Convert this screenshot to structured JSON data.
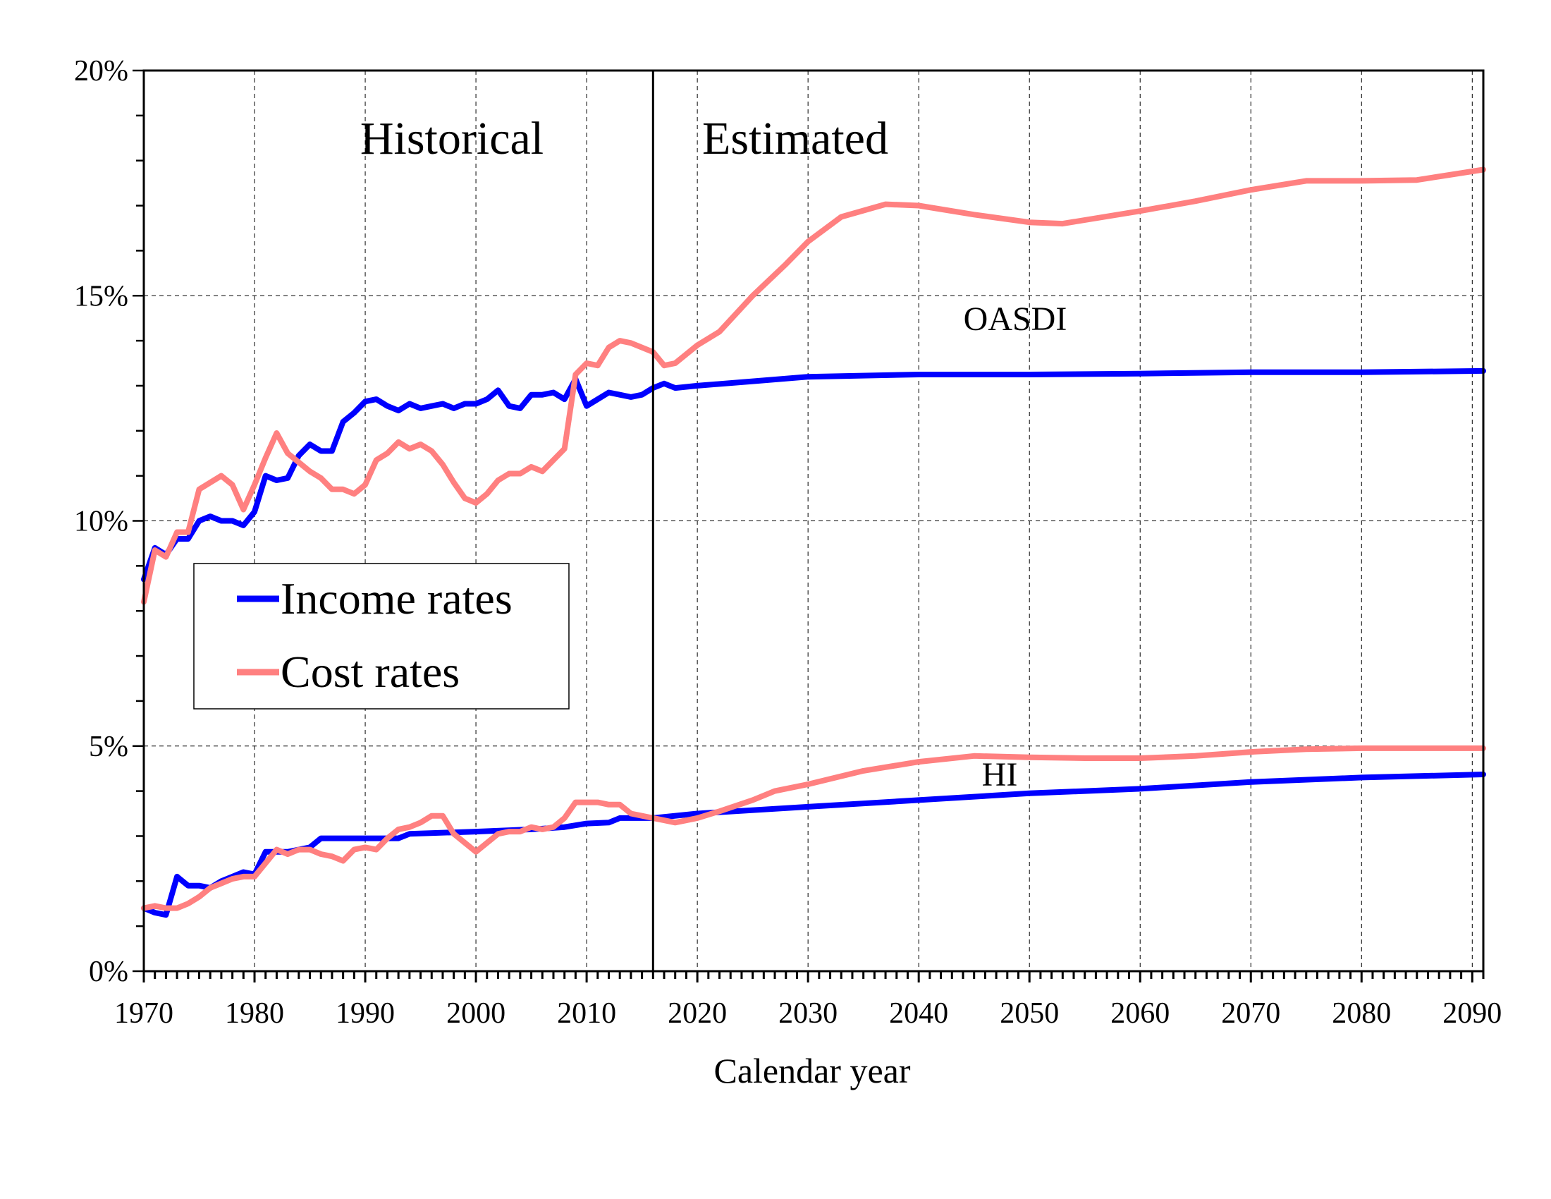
{
  "chart_data": {
    "type": "line",
    "title": "",
    "xlabel": "Calendar year",
    "ylabel": "",
    "xlim": [
      1970,
      2091
    ],
    "ylim": [
      0,
      20
    ],
    "x_ticks": [
      1970,
      1980,
      1990,
      2000,
      2010,
      2020,
      2030,
      2040,
      2050,
      2060,
      2070,
      2080,
      2090
    ],
    "x_tick_labels": [
      "1970",
      "1980",
      "1990",
      "2000",
      "2010",
      "2020",
      "2030",
      "2040",
      "2050",
      "2060",
      "2070",
      "2080",
      "2090"
    ],
    "y_ticks": [
      0,
      5,
      10,
      15,
      20
    ],
    "y_tick_labels": [
      "0%",
      "5%",
      "10%",
      "15%",
      "20%"
    ],
    "grid": true,
    "divider_year": 2016,
    "annotations": {
      "historical": "Historical",
      "estimated": "Estimated",
      "oasdi": "OASDI",
      "hi": "HI"
    },
    "legend": {
      "placement": "middle-left",
      "entries": [
        {
          "label": "Income rates",
          "color": "#0000FF"
        },
        {
          "label": "Cost rates",
          "color": "#FF8080"
        }
      ]
    },
    "series": [
      {
        "group": "OASDI",
        "kind": "Income rates",
        "color": "#0000FF",
        "x": [
          1970,
          1971,
          1972,
          1973,
          1974,
          1975,
          1976,
          1977,
          1978,
          1979,
          1980,
          1981,
          1982,
          1983,
          1984,
          1985,
          1986,
          1987,
          1988,
          1989,
          1990,
          1991,
          1992,
          1993,
          1994,
          1995,
          1996,
          1997,
          1998,
          1999,
          2000,
          2001,
          2002,
          2003,
          2004,
          2005,
          2006,
          2007,
          2008,
          2009,
          2010,
          2011,
          2012,
          2013,
          2014,
          2015,
          2016,
          2017,
          2018,
          2020,
          2025,
          2030,
          2040,
          2050,
          2060,
          2070,
          2080,
          2091
        ],
        "y": [
          8.7,
          9.4,
          9.25,
          9.6,
          9.6,
          10.0,
          10.1,
          10.0,
          10.0,
          9.9,
          10.2,
          11.0,
          10.9,
          10.95,
          11.45,
          11.7,
          11.55,
          11.55,
          12.2,
          12.4,
          12.65,
          12.7,
          12.55,
          12.45,
          12.6,
          12.5,
          12.55,
          12.6,
          12.5,
          12.6,
          12.6,
          12.7,
          12.9,
          12.55,
          12.5,
          12.8,
          12.8,
          12.85,
          12.7,
          13.15,
          12.55,
          12.7,
          12.85,
          12.8,
          12.75,
          12.8,
          12.95,
          13.05,
          12.95,
          13.0,
          13.1,
          13.2,
          13.25,
          13.25,
          13.27,
          13.3,
          13.3,
          13.33
        ]
      },
      {
        "group": "OASDI",
        "kind": "Cost rates",
        "color": "#FF8080",
        "x": [
          1970,
          1971,
          1972,
          1973,
          1974,
          1975,
          1976,
          1977,
          1978,
          1979,
          1980,
          1981,
          1982,
          1983,
          1984,
          1985,
          1986,
          1987,
          1988,
          1989,
          1990,
          1991,
          1992,
          1993,
          1994,
          1995,
          1996,
          1997,
          1998,
          1999,
          2000,
          2001,
          2002,
          2003,
          2004,
          2005,
          2006,
          2007,
          2008,
          2009,
          2010,
          2011,
          2012,
          2013,
          2014,
          2015,
          2016,
          2017,
          2018,
          2020,
          2022,
          2025,
          2028,
          2030,
          2033,
          2037,
          2040,
          2045,
          2050,
          2053,
          2060,
          2065,
          2070,
          2075,
          2080,
          2085,
          2091
        ],
        "y": [
          8.2,
          9.35,
          9.2,
          9.75,
          9.75,
          10.7,
          10.85,
          11.0,
          10.8,
          10.25,
          10.8,
          11.4,
          11.95,
          11.5,
          11.3,
          11.1,
          10.95,
          10.7,
          10.7,
          10.6,
          10.8,
          11.35,
          11.5,
          11.75,
          11.6,
          11.7,
          11.55,
          11.25,
          10.85,
          10.5,
          10.4,
          10.6,
          10.9,
          11.05,
          11.05,
          11.2,
          11.1,
          11.35,
          11.6,
          13.25,
          13.5,
          13.45,
          13.85,
          14.0,
          13.95,
          13.85,
          13.75,
          13.45,
          13.5,
          13.9,
          14.2,
          15.0,
          15.7,
          16.2,
          16.75,
          17.03,
          17.0,
          16.8,
          16.63,
          16.6,
          16.88,
          17.1,
          17.35,
          17.55,
          17.55,
          17.57,
          17.8
        ]
      },
      {
        "group": "HI",
        "kind": "Income rates",
        "color": "#0000FF",
        "x": [
          1970,
          1971,
          1972,
          1973,
          1974,
          1975,
          1976,
          1977,
          1978,
          1979,
          1980,
          1981,
          1982,
          1983,
          1984,
          1985,
          1986,
          1993,
          1994,
          2000,
          2005,
          2008,
          2010,
          2012,
          2013,
          2016,
          2020,
          2030,
          2040,
          2050,
          2060,
          2070,
          2080,
          2091
        ],
        "y": [
          1.4,
          1.3,
          1.25,
          2.1,
          1.9,
          1.9,
          1.85,
          2.0,
          2.1,
          2.2,
          2.15,
          2.65,
          2.65,
          2.65,
          2.7,
          2.75,
          2.95,
          2.95,
          3.05,
          3.1,
          3.15,
          3.2,
          3.28,
          3.3,
          3.4,
          3.4,
          3.5,
          3.65,
          3.8,
          3.95,
          4.05,
          4.2,
          4.3,
          4.37
        ]
      },
      {
        "group": "HI",
        "kind": "Cost rates",
        "color": "#FF8080",
        "x": [
          1970,
          1971,
          1972,
          1973,
          1974,
          1975,
          1976,
          1977,
          1978,
          1979,
          1980,
          1981,
          1982,
          1983,
          1984,
          1985,
          1986,
          1987,
          1988,
          1989,
          1990,
          1991,
          1992,
          1993,
          1994,
          1995,
          1996,
          1997,
          1998,
          1999,
          2000,
          2001,
          2002,
          2003,
          2004,
          2005,
          2006,
          2007,
          2008,
          2009,
          2010,
          2011,
          2012,
          2013,
          2014,
          2015,
          2016,
          2017,
          2018,
          2020,
          2022,
          2025,
          2027,
          2030,
          2035,
          2040,
          2045,
          2050,
          2055,
          2060,
          2065,
          2070,
          2075,
          2080,
          2091
        ],
        "y": [
          1.4,
          1.45,
          1.4,
          1.4,
          1.5,
          1.65,
          1.85,
          1.95,
          2.05,
          2.1,
          2.1,
          2.4,
          2.7,
          2.6,
          2.7,
          2.7,
          2.6,
          2.55,
          2.45,
          2.7,
          2.75,
          2.7,
          2.95,
          3.15,
          3.2,
          3.3,
          3.45,
          3.45,
          3.05,
          2.85,
          2.65,
          2.85,
          3.05,
          3.1,
          3.1,
          3.2,
          3.15,
          3.2,
          3.4,
          3.75,
          3.75,
          3.75,
          3.7,
          3.7,
          3.5,
          3.45,
          3.4,
          3.35,
          3.3,
          3.4,
          3.55,
          3.8,
          4.0,
          4.15,
          4.45,
          4.65,
          4.78,
          4.75,
          4.73,
          4.73,
          4.78,
          4.87,
          4.93,
          4.95,
          4.95
        ]
      }
    ]
  }
}
